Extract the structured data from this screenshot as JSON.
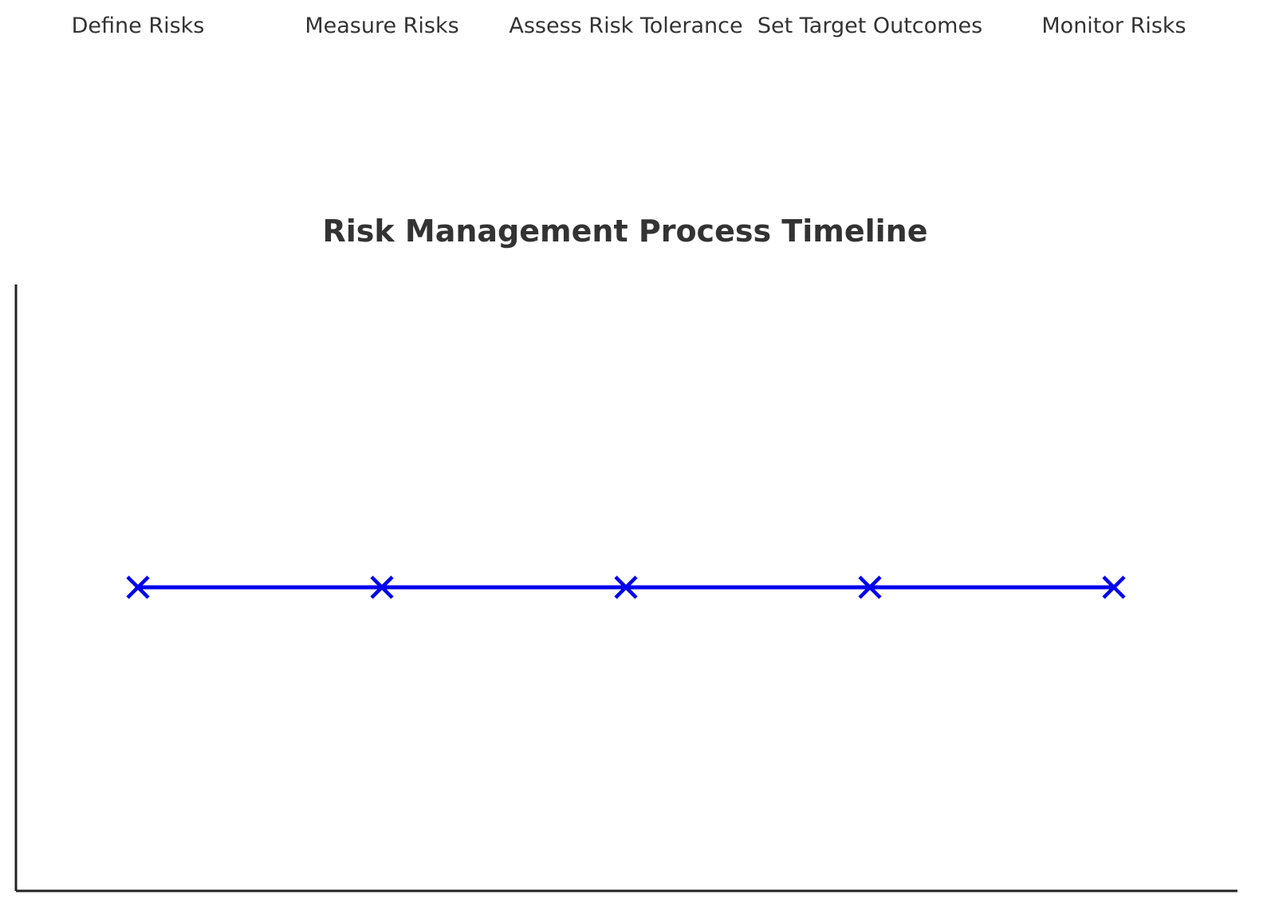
{
  "chart_data": {
    "type": "line",
    "title": "Risk Management Process Timeline",
    "xlabel": "",
    "ylabel": "",
    "categories": [
      "Define Risks",
      "Measure Risks",
      "Assess Risk Tolerance",
      "Set Target Outcomes",
      "Monitor Risks"
    ],
    "x": [
      1,
      2,
      3,
      4,
      5
    ],
    "values": [
      1,
      1,
      1,
      1,
      1
    ],
    "marker": "x",
    "line_color": "#0000ee",
    "tick_labels_position": "top",
    "grid": false,
    "legend": "none",
    "axes_visible": [
      "left",
      "bottom"
    ]
  }
}
